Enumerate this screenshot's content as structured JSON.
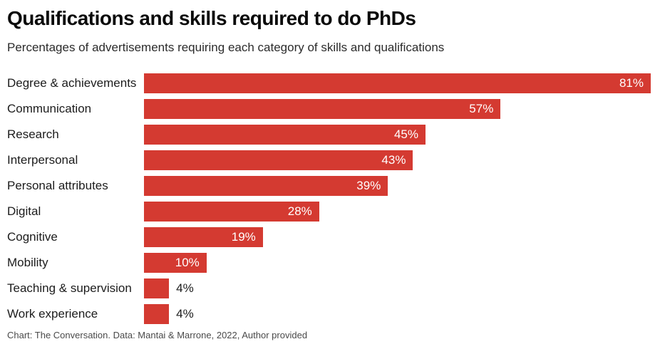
{
  "colors": {
    "bar": "#d43a31",
    "value_label_inside": "#ffffff",
    "value_label_outside": "#1c1c1c",
    "title": "#0b0b0b",
    "subtitle": "#2b2b2b",
    "footer": "#4a4a4a",
    "background": "#ffffff"
  },
  "chart_data": {
    "type": "bar",
    "orientation": "horizontal",
    "title": "Qualifications and skills required to do PhDs",
    "subtitle": "Percentages of advertisements requiring each category of skills and qualifications",
    "source_note": "Chart: The Conversation. Data: Mantai & Marrone, 2022, Author provided",
    "categories": [
      "Degree & achievements",
      "Communication",
      "Research",
      "Interpersonal",
      "Personal attributes",
      "Digital",
      "Cognitive",
      "Mobility",
      "Teaching & supervision",
      "Work experience"
    ],
    "values": [
      81,
      57,
      45,
      43,
      39,
      28,
      19,
      10,
      4,
      4
    ],
    "value_labels": [
      "81%",
      "57%",
      "45%",
      "43%",
      "39%",
      "28%",
      "19%",
      "10%",
      "4%",
      "4%"
    ],
    "value_suffix": "%",
    "xlim": [
      0,
      81
    ],
    "grid": false,
    "legend": false,
    "xlabel": "",
    "ylabel": ""
  }
}
